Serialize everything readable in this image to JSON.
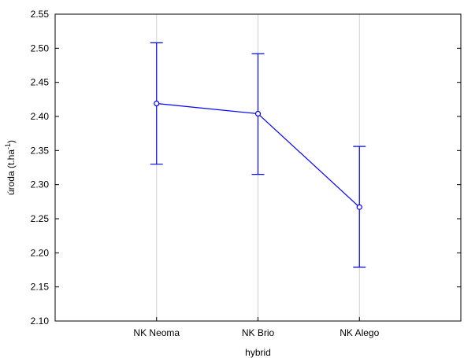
{
  "chart_data": {
    "type": "line",
    "xlabel": "hybrid",
    "ylabel": {
      "main": "úroda (t.ha",
      "sup": "-1",
      "close": ")"
    },
    "categories": [
      "NK Neoma",
      "NK Brio",
      "NK Alego"
    ],
    "series": [
      {
        "values": [
          2.419,
          2.404,
          2.267
        ],
        "error_lower": [
          2.33,
          2.315,
          2.179
        ],
        "error_upper": [
          2.508,
          2.492,
          2.356
        ],
        "color": "#0000ff"
      }
    ],
    "ylim": [
      2.1,
      2.55
    ],
    "yticks": [
      "2.10",
      "2.15",
      "2.20",
      "2.25",
      "2.30",
      "2.35",
      "2.40",
      "2.45",
      "2.50",
      "2.55"
    ],
    "grid": "vertical"
  }
}
